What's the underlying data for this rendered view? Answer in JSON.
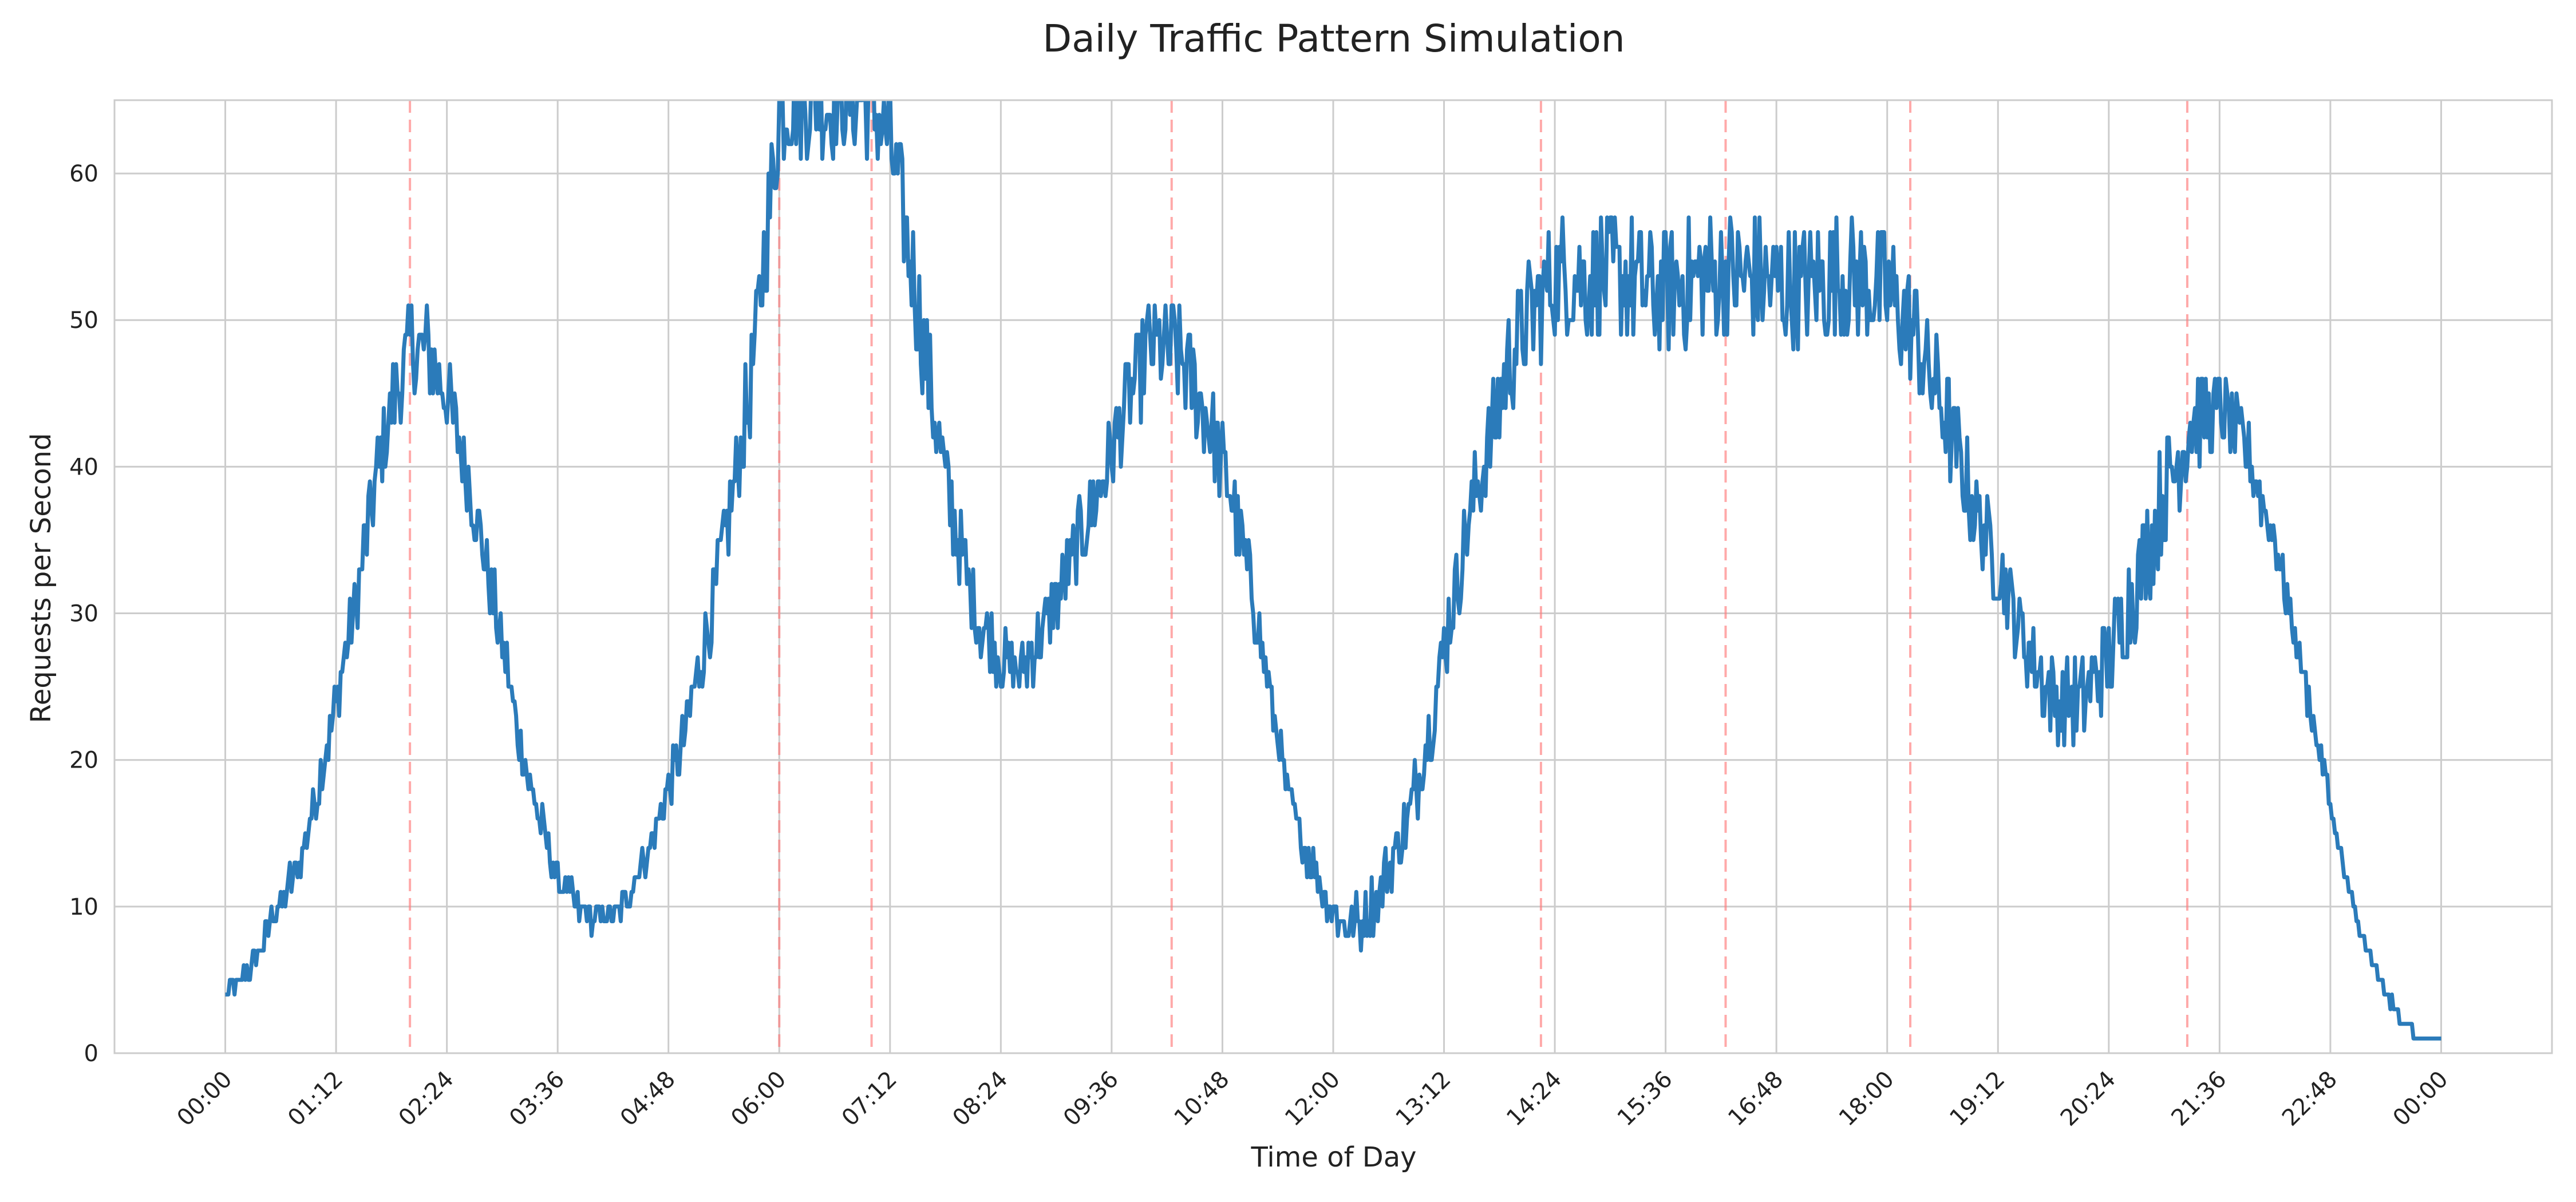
{
  "chart_data": {
    "type": "line",
    "title": "Daily Traffic Pattern Simulation",
    "xlabel": "Time of Day",
    "ylabel": "Requests per Second",
    "xlim_hours": [
      -1.2,
      25.2
    ],
    "ylim": [
      0,
      65
    ],
    "grid": true,
    "x_tick_labels": [
      "00:00",
      "01:12",
      "02:24",
      "03:36",
      "04:48",
      "06:00",
      "07:12",
      "08:24",
      "09:36",
      "10:48",
      "12:00",
      "13:12",
      "14:24",
      "15:36",
      "16:48",
      "18:00",
      "19:12",
      "20:24",
      "21:36",
      "22:48",
      "00:00"
    ],
    "y_ticks": [
      0,
      10,
      20,
      30,
      40,
      50,
      60
    ],
    "event_lines_hours": [
      2.0,
      6.0,
      7.0,
      10.25,
      14.25,
      16.25,
      18.25,
      21.25
    ],
    "series": [
      {
        "name": "requests_per_second",
        "color": "#2b7bba",
        "noise_amplitude_by_x": [
          [
            0,
            0.4
          ],
          [
            1.2,
            2.0
          ],
          [
            2.0,
            3.5
          ],
          [
            3.6,
            1.2
          ],
          [
            4.5,
            0.8
          ],
          [
            5.5,
            3.0
          ],
          [
            6.0,
            4.0
          ],
          [
            7.5,
            4.0
          ],
          [
            8.5,
            2.0
          ],
          [
            9.5,
            3.0
          ],
          [
            10.5,
            4.0
          ],
          [
            11.5,
            1.2
          ],
          [
            13.0,
            2.5
          ],
          [
            14.5,
            4.5
          ],
          [
            18.0,
            4.5
          ],
          [
            19.5,
            2.5
          ],
          [
            21.0,
            4.0
          ],
          [
            22.3,
            1.5
          ],
          [
            23.0,
            0.5
          ],
          [
            24.0,
            0
          ]
        ],
        "points": [
          [
            0,
            4
          ],
          [
            0.3,
            6
          ],
          [
            0.5,
            9
          ],
          [
            0.8,
            13
          ],
          [
            1.0,
            18
          ],
          [
            1.2,
            24
          ],
          [
            1.4,
            30
          ],
          [
            1.6,
            38
          ],
          [
            1.8,
            44
          ],
          [
            2.0,
            48
          ],
          [
            2.2,
            48
          ],
          [
            2.4,
            45
          ],
          [
            2.6,
            40
          ],
          [
            2.8,
            34
          ],
          [
            3.0,
            28
          ],
          [
            3.2,
            21
          ],
          [
            3.4,
            16
          ],
          [
            3.6,
            12
          ],
          [
            3.8,
            10
          ],
          [
            4.0,
            9
          ],
          [
            4.3,
            10
          ],
          [
            4.6,
            14
          ],
          [
            4.9,
            20
          ],
          [
            5.2,
            28
          ],
          [
            5.5,
            38
          ],
          [
            5.7,
            46
          ],
          [
            5.9,
            58
          ],
          [
            6.0,
            64
          ],
          [
            6.1,
            65
          ],
          [
            7.0,
            65
          ],
          [
            7.2,
            62
          ],
          [
            7.4,
            55
          ],
          [
            7.6,
            47
          ],
          [
            7.8,
            39
          ],
          [
            8.0,
            33
          ],
          [
            8.2,
            29
          ],
          [
            8.4,
            27
          ],
          [
            8.6,
            26
          ],
          [
            8.8,
            28
          ],
          [
            9.0,
            31
          ],
          [
            9.2,
            34
          ],
          [
            9.5,
            39
          ],
          [
            9.8,
            45
          ],
          [
            10.0,
            48
          ],
          [
            10.3,
            48
          ],
          [
            10.6,
            44
          ],
          [
            10.9,
            38
          ],
          [
            11.1,
            32
          ],
          [
            11.3,
            25
          ],
          [
            11.5,
            18
          ],
          [
            11.7,
            14
          ],
          [
            11.9,
            11
          ],
          [
            12.1,
            9
          ],
          [
            12.3,
            9
          ],
          [
            12.5,
            11
          ],
          [
            12.7,
            14
          ],
          [
            12.9,
            18
          ],
          [
            13.1,
            24
          ],
          [
            13.3,
            31
          ],
          [
            13.5,
            37
          ],
          [
            13.7,
            42
          ],
          [
            13.9,
            47
          ],
          [
            14.1,
            50
          ],
          [
            14.4,
            53
          ],
          [
            15.0,
            53
          ],
          [
            15.5,
            52
          ],
          [
            16.0,
            53
          ],
          [
            16.5,
            53
          ],
          [
            17.0,
            52
          ],
          [
            17.5,
            53
          ],
          [
            18.0,
            52
          ],
          [
            18.3,
            49
          ],
          [
            18.6,
            44
          ],
          [
            18.9,
            38
          ],
          [
            19.2,
            33
          ],
          [
            19.5,
            28
          ],
          [
            19.8,
            24
          ],
          [
            20.1,
            24
          ],
          [
            20.4,
            27
          ],
          [
            20.7,
            32
          ],
          [
            21.0,
            38
          ],
          [
            21.3,
            43
          ],
          [
            21.6,
            44
          ],
          [
            21.9,
            41
          ],
          [
            22.2,
            35
          ],
          [
            22.5,
            26
          ],
          [
            22.8,
            17
          ],
          [
            23.0,
            11
          ],
          [
            23.2,
            7
          ],
          [
            23.4,
            4
          ],
          [
            23.6,
            2
          ],
          [
            23.75,
            1
          ],
          [
            24.0,
            1
          ]
        ]
      }
    ]
  }
}
